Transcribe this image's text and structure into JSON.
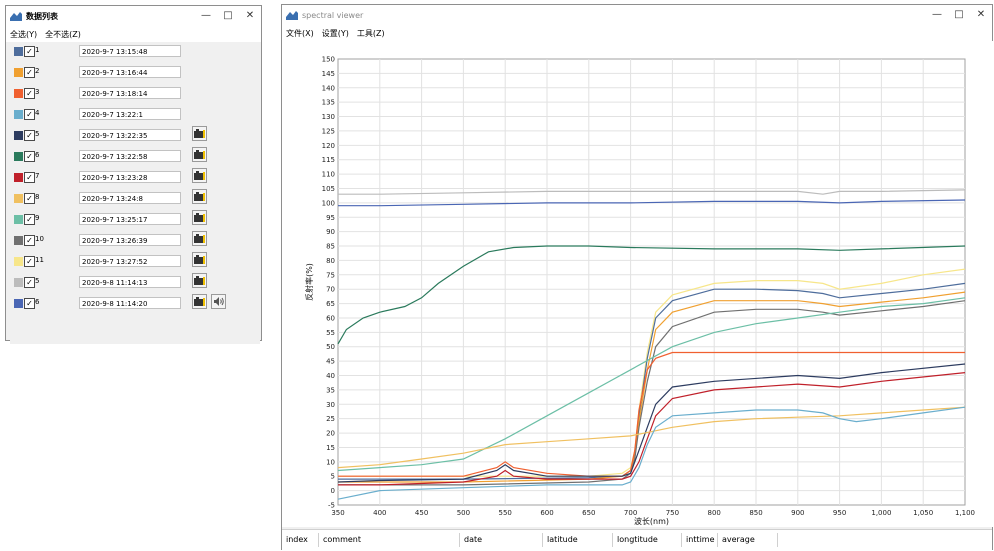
{
  "list_window": {
    "title": "数据列表",
    "menu": [
      "全选(Y)",
      "全不选(Z)"
    ],
    "rows": [
      {
        "label": "1",
        "time": "2020-9-7 13:15:48",
        "color": "#4e6d9c",
        "has_cam": false,
        "has_spk": false
      },
      {
        "label": "2",
        "time": "2020-9-7 13:16:44",
        "color": "#f0a030",
        "has_cam": false,
        "has_spk": false
      },
      {
        "label": "3",
        "time": "2020-9-7 13:18:14",
        "color": "#f06030",
        "has_cam": false,
        "has_spk": false
      },
      {
        "label": "4",
        "time": "2020-9-7 13:22:1",
        "color": "#6aaecd",
        "has_cam": false,
        "has_spk": false
      },
      {
        "label": "5",
        "time": "2020-9-7 13:22:35",
        "color": "#2d3c60",
        "has_cam": true,
        "has_spk": false
      },
      {
        "label": "6",
        "time": "2020-9-7 13:22:58",
        "color": "#2a7a5c",
        "has_cam": true,
        "has_spk": false
      },
      {
        "label": "7",
        "time": "2020-9-7 13:23:28",
        "color": "#c0202a",
        "has_cam": true,
        "has_spk": false
      },
      {
        "label": "8",
        "time": "2020-9-7 13:24:8",
        "color": "#f0c060",
        "has_cam": true,
        "has_spk": false
      },
      {
        "label": "9",
        "time": "2020-9-7 13:25:17",
        "color": "#6cbfa6",
        "has_cam": true,
        "has_spk": false
      },
      {
        "label": "10",
        "time": "2020-9-7 13:26:39",
        "color": "#707070",
        "has_cam": true,
        "has_spk": false
      },
      {
        "label": "11",
        "time": "2020-9-7 13:27:52",
        "color": "#f7e68a",
        "has_cam": true,
        "has_spk": false
      },
      {
        "label": "5",
        "time": "2020-9-8 11:14:13",
        "color": "#bcbcbc",
        "has_cam": true,
        "has_spk": false
      },
      {
        "label": "6",
        "time": "2020-9-8 11:14:20",
        "color": "#4a66b4",
        "has_cam": true,
        "has_spk": true
      }
    ]
  },
  "viewer_window": {
    "title": "spectral viewer",
    "menu": [
      "文件(X)",
      "设置(Y)",
      "工具(Z)"
    ],
    "columns": [
      "index",
      "comment",
      "date",
      "latitude",
      "longtitude",
      "inttime",
      "average"
    ]
  },
  "chart_data": {
    "type": "line",
    "title": "",
    "xlabel": "波长(nm)",
    "ylabel": "反射率(%)",
    "xlim": [
      350,
      1100
    ],
    "ylim": [
      -5,
      150
    ],
    "x_ticks": [
      "350",
      "400",
      "450",
      "500",
      "550",
      "600",
      "650",
      "700",
      "750",
      "800",
      "850",
      "900",
      "950",
      "1,000",
      "1,050",
      "1,100"
    ],
    "y_ticks": [
      "-5",
      "0",
      "5",
      "10",
      "15",
      "20",
      "25",
      "30",
      "35",
      "40",
      "45",
      "50",
      "55",
      "60",
      "65",
      "70",
      "75",
      "80",
      "85",
      "90",
      "95",
      "100",
      "105",
      "110",
      "115",
      "120",
      "125",
      "130",
      "135",
      "140",
      "145",
      "150"
    ],
    "grid": true,
    "series": [
      {
        "color": "#4a66b4",
        "x": [
          350,
          400,
          500,
          600,
          700,
          800,
          900,
          950,
          1000,
          1100
        ],
        "y": [
          99,
          99,
          99.5,
          100,
          100,
          100.5,
          100.5,
          100,
          100.5,
          101
        ]
      },
      {
        "color": "#bcbcbc",
        "x": [
          350,
          400,
          500,
          600,
          700,
          800,
          900,
          930,
          950,
          1000,
          1100
        ],
        "y": [
          103,
          103,
          103.5,
          104,
          104,
          104,
          104,
          103,
          104,
          104,
          104.5
        ]
      },
      {
        "color": "#2a7a5c",
        "x": [
          350,
          360,
          380,
          400,
          430,
          450,
          470,
          500,
          530,
          560,
          600,
          650,
          700,
          800,
          900,
          950,
          1000,
          1100
        ],
        "y": [
          51,
          56,
          60,
          62,
          64,
          67,
          72,
          78,
          83,
          84.5,
          85,
          85,
          84.5,
          84,
          84,
          83.5,
          84,
          85
        ]
      },
      {
        "color": "#f7e68a",
        "x": [
          350,
          500,
          650,
          690,
          700,
          705,
          710,
          720,
          730,
          750,
          800,
          850,
          900,
          930,
          950,
          1000,
          1050,
          1100
        ],
        "y": [
          5,
          5,
          5,
          6,
          8,
          14,
          28,
          48,
          62,
          68,
          72,
          73,
          73,
          72,
          70,
          72,
          75,
          77
        ]
      },
      {
        "color": "#4e6d9c",
        "x": [
          350,
          500,
          650,
          690,
          700,
          705,
          710,
          720,
          730,
          750,
          800,
          850,
          900,
          930,
          950,
          1000,
          1050,
          1100
        ],
        "y": [
          4,
          4,
          4.5,
          5,
          7,
          13,
          26,
          46,
          60,
          66,
          70,
          70,
          69.5,
          68.5,
          67,
          68.5,
          70,
          72
        ]
      },
      {
        "color": "#f0a030",
        "x": [
          350,
          500,
          650,
          690,
          700,
          705,
          710,
          720,
          730,
          750,
          800,
          850,
          900,
          930,
          950,
          1000,
          1050,
          1100
        ],
        "y": [
          3,
          3,
          4,
          5,
          7,
          12,
          24,
          42,
          56,
          62,
          66,
          66,
          66,
          65,
          64,
          65.5,
          67,
          69
        ]
      },
      {
        "color": "#707070",
        "x": [
          350,
          500,
          650,
          690,
          700,
          705,
          710,
          720,
          730,
          750,
          800,
          850,
          900,
          930,
          950,
          1000,
          1050,
          1100
        ],
        "y": [
          2,
          2,
          3,
          4,
          6,
          11,
          22,
          38,
          50,
          57,
          62,
          63,
          63,
          62,
          61,
          62.5,
          64,
          66
        ]
      },
      {
        "color": "#6cbfa6",
        "x": [
          350,
          400,
          450,
          500,
          550,
          600,
          650,
          700,
          750,
          800,
          850,
          900,
          950,
          1000,
          1050,
          1100
        ],
        "y": [
          7,
          8,
          9,
          11,
          18,
          26,
          34,
          42,
          50,
          55,
          58,
          60,
          62,
          64,
          65,
          67
        ]
      },
      {
        "color": "#f06030",
        "x": [
          350,
          400,
          500,
          540,
          550,
          560,
          600,
          650,
          690,
          700,
          705,
          710,
          720,
          730,
          750,
          800,
          900,
          1000,
          1100
        ],
        "y": [
          5,
          5,
          5,
          8,
          10,
          8,
          6,
          5,
          5,
          7,
          14,
          28,
          42,
          46,
          48,
          48,
          48,
          48,
          48
        ]
      },
      {
        "color": "#2d3c60",
        "x": [
          350,
          400,
          500,
          540,
          550,
          560,
          600,
          650,
          690,
          700,
          710,
          720,
          730,
          750,
          800,
          900,
          950,
          1000,
          1100
        ],
        "y": [
          3,
          3.5,
          4,
          7,
          9,
          7,
          5,
          5,
          5,
          6,
          14,
          22,
          30,
          36,
          38,
          40,
          39,
          41,
          44
        ]
      },
      {
        "color": "#c0202a",
        "x": [
          350,
          400,
          500,
          540,
          550,
          560,
          600,
          650,
          690,
          700,
          710,
          720,
          730,
          750,
          800,
          900,
          950,
          1000,
          1100
        ],
        "y": [
          2,
          2,
          3,
          5,
          7,
          5,
          4,
          4,
          4,
          5,
          10,
          18,
          26,
          32,
          35,
          37,
          36,
          38,
          41
        ]
      },
      {
        "color": "#f0c060",
        "x": [
          350,
          400,
          450,
          500,
          550,
          600,
          650,
          700,
          750,
          800,
          850,
          900,
          950,
          1000,
          1050,
          1100
        ],
        "y": [
          8,
          9,
          11,
          13,
          16,
          17,
          18,
          19,
          22,
          24,
          25,
          25.5,
          26,
          27,
          28,
          29
        ]
      },
      {
        "color": "#6aaecd",
        "x": [
          350,
          400,
          500,
          600,
          650,
          690,
          700,
          710,
          720,
          730,
          750,
          800,
          850,
          900,
          930,
          950,
          970,
          1000,
          1050,
          1100
        ],
        "y": [
          -3,
          0,
          1,
          2,
          2,
          2,
          3,
          8,
          16,
          22,
          26,
          27,
          28,
          28,
          27,
          25,
          24,
          25,
          27,
          29
        ]
      }
    ]
  }
}
